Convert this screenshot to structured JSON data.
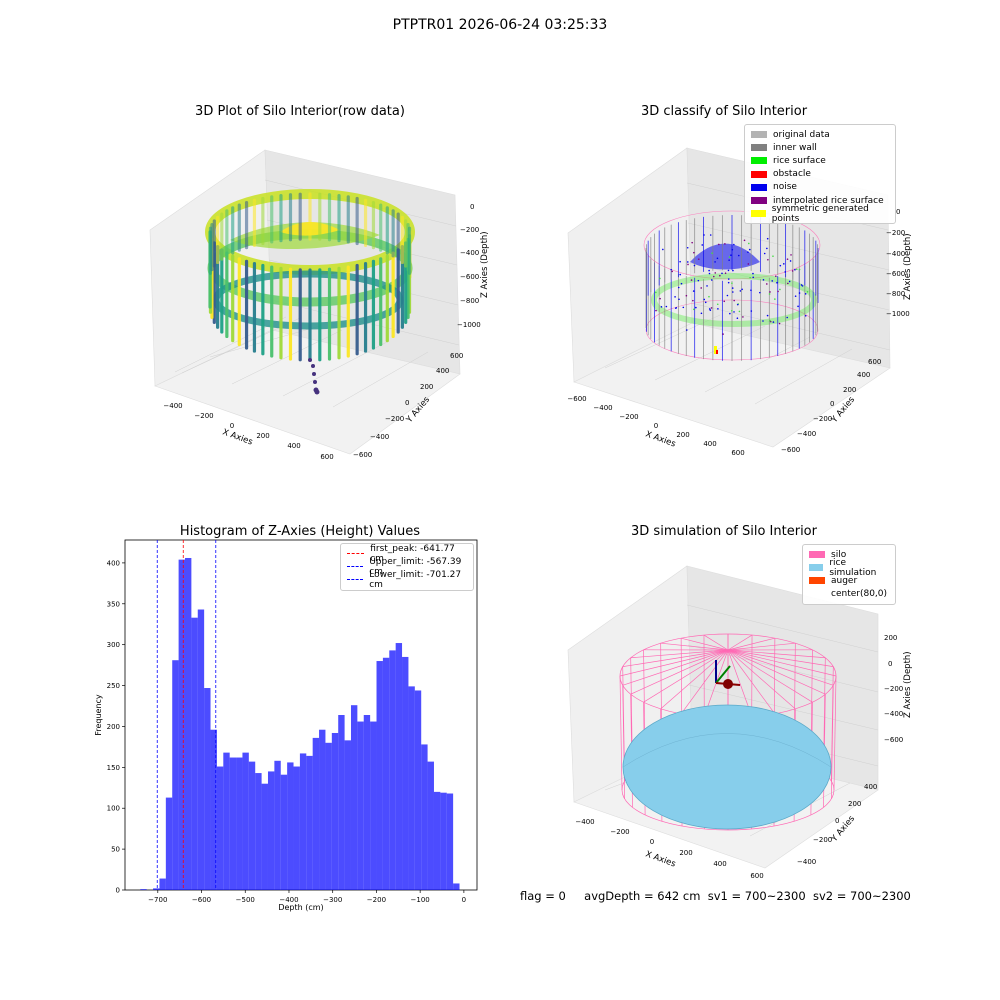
{
  "suptitle": "PTPTR01 2026-06-24 03:25:33",
  "panels": {
    "raw": {
      "title": "3D Plot of Silo Interior(row data)",
      "xlabel": "X Axies",
      "ylabel": "Y Axies",
      "zlabel": "Z Axies (Depth)",
      "xticks": [
        "−400",
        "−200",
        "0",
        "200",
        "400",
        "600"
      ],
      "yticks": [
        "600",
        "400",
        "200",
        "0",
        "−200",
        "−400",
        "−600"
      ],
      "zticks": [
        "0",
        "−200",
        "−400",
        "−600",
        "−800",
        "−1000"
      ]
    },
    "classify": {
      "title": "3D classify of Silo Interior",
      "xlabel": "X Axies",
      "ylabel": "Y Axies",
      "zlabel": "Z Axies (Depth)",
      "xticks": [
        "−600",
        "−400",
        "−200",
        "0",
        "200",
        "400",
        "600"
      ],
      "yticks": [
        "600",
        "400",
        "200",
        "0",
        "−200",
        "−400",
        "−600"
      ],
      "zticks": [
        "0",
        "−200",
        "−400",
        "−600",
        "−800",
        "−1000"
      ],
      "legend": [
        {
          "label": "original data",
          "color": "#b3b3b3"
        },
        {
          "label": "inner wall",
          "color": "#808080"
        },
        {
          "label": "rice surface",
          "color": "#00ee00"
        },
        {
          "label": "obstacle",
          "color": "#ff0000"
        },
        {
          "label": "noise",
          "color": "#0000ee"
        },
        {
          "label": "interpolated rice surface",
          "color": "#800080"
        },
        {
          "label": "symmetric generated points",
          "color": "#ffff00"
        }
      ]
    },
    "simulation": {
      "title": "3D simulation of Silo Interior",
      "xlabel": "X Axies",
      "ylabel": "Y Axies",
      "zlabel": "Z Axies (Depth)",
      "xticks": [
        "−400",
        "−200",
        "0",
        "200",
        "400",
        "600"
      ],
      "yticks": [
        "400",
        "200",
        "0",
        "−200",
        "−400"
      ],
      "zticks": [
        "200",
        "0",
        "−200",
        "−400",
        "−600"
      ],
      "legend": [
        {
          "label": "silo",
          "color": "#ff69b4"
        },
        {
          "label": "rice simulation",
          "color": "#87ceeb"
        },
        {
          "label": "auger",
          "color": "#ff4500"
        },
        {
          "label": "center(80,0)",
          "color": ""
        }
      ]
    }
  },
  "status": {
    "flag": "flag = 0",
    "avg": "avgDepth = 642 cm",
    "sv1": "sv1 = 700~2300",
    "sv2": "sv2 = 700~2300"
  },
  "chart_data": [
    {
      "type": "bar",
      "title": "Histogram of Z-Axies (Height) Values",
      "xlabel": "Depth (cm)",
      "ylabel": "Frequency",
      "xlim": [
        -775,
        30
      ],
      "ylim": [
        0,
        428
      ],
      "bar_color": "#0000ff",
      "bin_width": 14.6,
      "bin_starts": [
        -740.0,
        -725.4,
        -710.8,
        -696.2,
        -681.6,
        -667.0,
        -652.4,
        -637.8,
        -623.2,
        -608.6,
        -594.0,
        -579.4,
        -564.8,
        -550.2,
        -535.6,
        -521.0,
        -506.4,
        -491.8,
        -477.2,
        -462.6,
        -448.0,
        -433.4,
        -418.8,
        -404.2,
        -389.6,
        -375.0,
        -360.4,
        -345.8,
        -331.2,
        -316.6,
        -302.0,
        -287.4,
        -272.8,
        -258.2,
        -243.6,
        -229.0,
        -214.4,
        -199.8,
        -185.2,
        -170.6,
        -156.0,
        -141.4,
        -126.8,
        -112.2,
        -97.6,
        -83.0,
        -68.4,
        -53.8,
        -39.2,
        -24.6,
        -10.0
      ],
      "values": [
        1,
        0,
        2,
        14,
        113,
        281,
        404,
        406,
        333,
        343,
        247,
        196,
        151,
        168,
        162,
        162,
        168,
        157,
        143,
        130,
        145,
        158,
        141,
        156,
        151,
        167,
        164,
        186,
        196,
        180,
        192,
        214,
        183,
        226,
        206,
        214,
        206,
        280,
        284,
        293,
        302,
        285,
        249,
        244,
        178,
        157,
        120,
        119,
        118,
        8,
        0
      ],
      "xticks": [
        -700,
        -600,
        -500,
        -400,
        -300,
        -200,
        -100,
        0
      ],
      "xtick_labels": [
        "−700",
        "−600",
        "−500",
        "−400",
        "−300",
        "−200",
        "−100",
        "0"
      ],
      "yticks": [
        0,
        50,
        100,
        150,
        200,
        250,
        300,
        350,
        400
      ],
      "vlines": [
        {
          "x": -641.77,
          "color": "#ff0000",
          "label": "first_peak: -641.77 cm"
        },
        {
          "x": -567.39,
          "color": "#0000ff",
          "label": "Upper_limit: -567.39 cm"
        },
        {
          "x": -701.27,
          "color": "#0000ff",
          "label": "Lower_limit: -701.27 cm"
        }
      ],
      "legend_position": "upper right"
    }
  ]
}
